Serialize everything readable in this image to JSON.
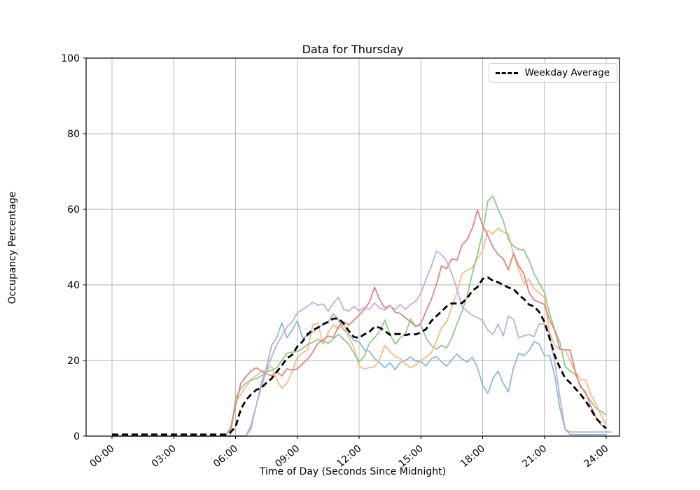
{
  "chart_data": {
    "type": "line",
    "title": "Data for Thursday",
    "xlabel": "Time of Day (Seconds Since Midnight)",
    "ylabel": "Occupancy Percentage",
    "grid": true,
    "legend_position": "upper right",
    "legend_entries": [
      "Weekday Average"
    ],
    "ylim": [
      0,
      100
    ],
    "y_ticks": [
      0,
      20,
      40,
      60,
      80,
      100
    ],
    "x_tick_hours": [
      0,
      3,
      6,
      9,
      12,
      15,
      18,
      21,
      24
    ],
    "x_tick_labels": [
      "00:00",
      "03:00",
      "06:00",
      "09:00",
      "12:00",
      "15:00",
      "18:00",
      "21:00",
      "24:00"
    ],
    "x_start_hours": 0,
    "x_step_hours": 0.25,
    "colors": {
      "grid": "#b0b0b0",
      "spine": "#000000",
      "average": "#000000",
      "series_blue": "#88b9da",
      "series_orange": "#ffb880",
      "series_green": "#8bc98b",
      "series_red": "#e8807e",
      "series_purple": "#c3abdd"
    },
    "series": [
      {
        "name": "series-1-blue",
        "color": "#88b9da",
        "dashed": false,
        "values": [
          0,
          0,
          0,
          0,
          0,
          0,
          0,
          0,
          0,
          0,
          0,
          0,
          0,
          0,
          0,
          0,
          0,
          0,
          0,
          0,
          0,
          0,
          0,
          0,
          0,
          0,
          0,
          2,
          8,
          14,
          18,
          24,
          26,
          30,
          26,
          28,
          30.5,
          26,
          26.5,
          27.5,
          28.7,
          29.4,
          30.2,
          32.4,
          30.7,
          28.1,
          27,
          25.3,
          25,
          22.8,
          22.4,
          20.6,
          19.4,
          18.1,
          19.4,
          17.6,
          19.4,
          20,
          20.9,
          19.8,
          19.8,
          18.5,
          20.4,
          21.1,
          19.6,
          18.5,
          20.2,
          21.7,
          20.4,
          19.6,
          20.9,
          18.1,
          13.5,
          11.3,
          15.2,
          17.2,
          13.9,
          11.7,
          18.1,
          21.9,
          21.3,
          22.6,
          25,
          24.3,
          21.3,
          21.3,
          16,
          7.4,
          1.9,
          0.4,
          0.4,
          0.4,
          0.4,
          0.4,
          0.4,
          0.4,
          0.4
        ]
      },
      {
        "name": "series-2-orange",
        "color": "#ffb880",
        "dashed": false,
        "values": [
          0,
          0,
          0,
          0,
          0,
          0,
          0,
          0,
          0,
          0,
          0,
          0,
          0,
          0,
          0,
          0,
          0,
          0,
          0,
          0,
          0,
          0,
          0,
          0,
          9,
          11,
          13,
          15,
          16,
          17,
          17.5,
          18.5,
          15,
          12.6,
          14,
          17,
          20.9,
          22,
          22.8,
          29.4,
          29.9,
          24.3,
          27.4,
          29.4,
          28.3,
          29.6,
          26,
          23.5,
          18.5,
          17.8,
          18.1,
          18.3,
          20.4,
          24,
          22.4,
          21,
          20.6,
          19.1,
          18.1,
          18.7,
          20,
          20.9,
          21.9,
          25,
          28.7,
          30.2,
          34,
          38,
          43,
          43.9,
          44.6,
          47,
          49,
          54.4,
          53.5,
          55,
          54,
          53.5,
          48,
          44,
          40.4,
          41.5,
          39,
          37.8,
          36.7,
          27.4,
          24,
          23,
          22.8,
          20,
          17,
          15,
          14.8,
          11,
          8.5,
          5.5,
          3
        ]
      },
      {
        "name": "series-3-green",
        "color": "#8bc98b",
        "dashed": false,
        "values": [
          0,
          0,
          0,
          0,
          0,
          0,
          0,
          0,
          0,
          0,
          0,
          0,
          0,
          0,
          0,
          0,
          0,
          0,
          0,
          0,
          0,
          0,
          0,
          0,
          10,
          12.6,
          14,
          14.8,
          15.2,
          15.9,
          17,
          17.4,
          18.1,
          20,
          21.9,
          22.2,
          22.4,
          23.1,
          24.3,
          24.8,
          25.6,
          25,
          24.6,
          25.8,
          26.9,
          25.6,
          24.3,
          21.9,
          19.6,
          21.1,
          24.6,
          26,
          27.7,
          30.7,
          27,
          24.3,
          26,
          27,
          31,
          29,
          29.4,
          26,
          24,
          23,
          24,
          23.3,
          26,
          29.6,
          33,
          37.2,
          43,
          48.1,
          53.9,
          62.2,
          63.5,
          60,
          57,
          52,
          50.2,
          49.4,
          49.3,
          46.5,
          43,
          40.4,
          38,
          32.4,
          28.1,
          25,
          18.5,
          17.2,
          16.3,
          13.5,
          11.1,
          9.3,
          7.4,
          6.5,
          5.6
        ]
      },
      {
        "name": "series-4-red",
        "color": "#e8807e",
        "dashed": false,
        "values": [
          0,
          0,
          0,
          0,
          0,
          0,
          0,
          0,
          0,
          0,
          0,
          0,
          0,
          0,
          0,
          0,
          0,
          0,
          0,
          0,
          0,
          0,
          0,
          2,
          8.1,
          13.9,
          15.7,
          17.2,
          18.1,
          17.2,
          16.5,
          15.9,
          17,
          15.9,
          17.8,
          17.4,
          17.8,
          19.1,
          20.4,
          22.2,
          24.6,
          25.4,
          26.5,
          26.1,
          29,
          30.2,
          29.4,
          30.7,
          32,
          33.5,
          35.4,
          39.4,
          36.1,
          33.9,
          34.6,
          32.8,
          32.4,
          31.3,
          30.2,
          29,
          29.8,
          33,
          36.1,
          40,
          45,
          44.3,
          46.9,
          46.5,
          50.6,
          52,
          55,
          59.8,
          55.7,
          53,
          50,
          48,
          46.9,
          44,
          48.3,
          45,
          43,
          38,
          36,
          35.4,
          34.8,
          30.7,
          28,
          23,
          22.8,
          22.8,
          17,
          13,
          11.7,
          8,
          5,
          3,
          2
        ]
      },
      {
        "name": "series-5-purple",
        "color": "#c3abdd",
        "dashed": false,
        "values": [
          0,
          0,
          0,
          0,
          0,
          0,
          0,
          0,
          0,
          0,
          0,
          0,
          0,
          0,
          0,
          0,
          0,
          0,
          0,
          0,
          0,
          0,
          0,
          0,
          0,
          0,
          0,
          3,
          8,
          13,
          17.2,
          20.9,
          24.1,
          26.5,
          28.9,
          30.2,
          32.6,
          33.5,
          34.3,
          35.4,
          34.6,
          35,
          33,
          35.2,
          36.7,
          33.5,
          33.1,
          34.3,
          33.1,
          34,
          33.5,
          35.2,
          33.9,
          33.3,
          34.5,
          33.5,
          34.8,
          33.5,
          34.8,
          35.7,
          37.8,
          41.5,
          44.8,
          48.9,
          48.1,
          46.3,
          43,
          38.9,
          34.3,
          33,
          32,
          31.3,
          30.6,
          28,
          26.9,
          29.6,
          26.5,
          31.7,
          30.9,
          26,
          26.5,
          26.9,
          26.3,
          29.8,
          29.6,
          26.9,
          19.6,
          10.4,
          1.9,
          1.1,
          1.1,
          1.1,
          1.1,
          1.1,
          1.1,
          1.1,
          1.1,
          1.1
        ]
      },
      {
        "name": "Weekday Average",
        "color": "#000000",
        "dashed": true,
        "values": [
          0.4,
          0.4,
          0.4,
          0.4,
          0.4,
          0.4,
          0.4,
          0.4,
          0.4,
          0.4,
          0.4,
          0.4,
          0.4,
          0.4,
          0.4,
          0.4,
          0.4,
          0.4,
          0.4,
          0.4,
          0.4,
          0.4,
          0.4,
          1,
          2.4,
          7,
          9.5,
          11,
          12.2,
          12.8,
          14.1,
          15.2,
          17,
          18.7,
          20.6,
          21.5,
          23.7,
          25,
          27,
          28,
          28.7,
          29.6,
          30.2,
          31.1,
          31.1,
          29.8,
          27.8,
          26.2,
          26,
          26.9,
          27.6,
          28.9,
          28.7,
          27.8,
          26.8,
          27,
          27,
          26.7,
          27,
          26.9,
          27.4,
          28.3,
          30.4,
          31.7,
          33,
          34.3,
          35.1,
          35.1,
          35.2,
          36.5,
          38.5,
          39.4,
          41.6,
          42,
          41.1,
          40.7,
          40,
          39.3,
          38.9,
          37.4,
          36.3,
          34.8,
          34.3,
          32.8,
          30.2,
          25.9,
          21.3,
          18.1,
          15.4,
          14.1,
          12.6,
          11.1,
          9.3,
          7.2,
          4.8,
          3.3,
          2
        ]
      }
    ]
  }
}
